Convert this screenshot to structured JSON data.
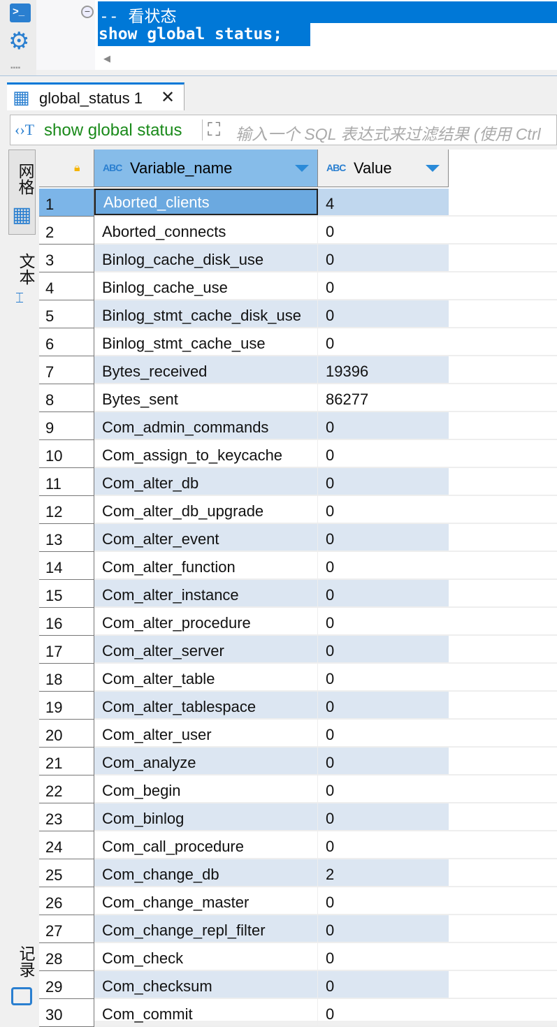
{
  "editor": {
    "comment": "-- 看状态",
    "sql": "show global status;"
  },
  "result_tab": {
    "label": "global_status 1"
  },
  "filter": {
    "query": "show global status",
    "placeholder": "输入一个 SQL 表达式来过滤结果 (使用 Ctrl"
  },
  "side_tabs": {
    "grid": "网格",
    "text": "文本",
    "record": "记录"
  },
  "columns": [
    {
      "label": "Variable_name",
      "type": "ABC"
    },
    {
      "label": "Value",
      "type": "ABC"
    }
  ],
  "rows": [
    [
      "1",
      "Aborted_clients",
      "4"
    ],
    [
      "2",
      "Aborted_connects",
      "0"
    ],
    [
      "3",
      "Binlog_cache_disk_use",
      "0"
    ],
    [
      "4",
      "Binlog_cache_use",
      "0"
    ],
    [
      "5",
      "Binlog_stmt_cache_disk_use",
      "0"
    ],
    [
      "6",
      "Binlog_stmt_cache_use",
      "0"
    ],
    [
      "7",
      "Bytes_received",
      "19396"
    ],
    [
      "8",
      "Bytes_sent",
      "86277"
    ],
    [
      "9",
      "Com_admin_commands",
      "0"
    ],
    [
      "10",
      "Com_assign_to_keycache",
      "0"
    ],
    [
      "11",
      "Com_alter_db",
      "0"
    ],
    [
      "12",
      "Com_alter_db_upgrade",
      "0"
    ],
    [
      "13",
      "Com_alter_event",
      "0"
    ],
    [
      "14",
      "Com_alter_function",
      "0"
    ],
    [
      "15",
      "Com_alter_instance",
      "0"
    ],
    [
      "16",
      "Com_alter_procedure",
      "0"
    ],
    [
      "17",
      "Com_alter_server",
      "0"
    ],
    [
      "18",
      "Com_alter_table",
      "0"
    ],
    [
      "19",
      "Com_alter_tablespace",
      "0"
    ],
    [
      "20",
      "Com_alter_user",
      "0"
    ],
    [
      "21",
      "Com_analyze",
      "0"
    ],
    [
      "22",
      "Com_begin",
      "0"
    ],
    [
      "23",
      "Com_binlog",
      "0"
    ],
    [
      "24",
      "Com_call_procedure",
      "0"
    ],
    [
      "25",
      "Com_change_db",
      "2"
    ],
    [
      "26",
      "Com_change_master",
      "0"
    ],
    [
      "27",
      "Com_change_repl_filter",
      "0"
    ],
    [
      "28",
      "Com_check",
      "0"
    ],
    [
      "29",
      "Com_checksum",
      "0"
    ],
    [
      "30",
      "Com_commit",
      "0"
    ]
  ],
  "colors": {
    "accent": "#0078d7",
    "row_alt": "#dce6f2",
    "selected": "#6ba9e0",
    "filter_text": "#1a8a1a"
  }
}
